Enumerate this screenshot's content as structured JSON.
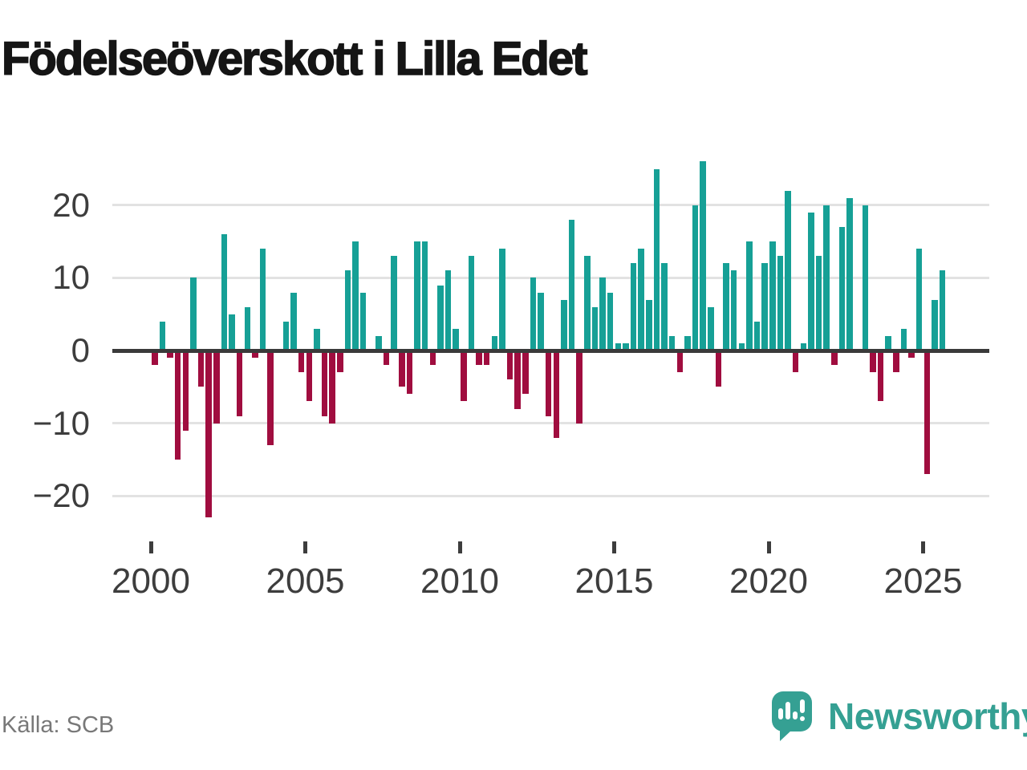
{
  "title": "Födelseöverskott i Lilla Edet",
  "source": "Källa: SCB",
  "branding": {
    "name": "Newsworthy",
    "logo_icon": "speech-bubble-bar-chart-icon",
    "color": "#35a093"
  },
  "chart_data": {
    "type": "bar",
    "title": "Födelseöverskott i Lilla Edet",
    "frequency": "quarterly",
    "xlabel": "",
    "ylabel": "",
    "ylim": [
      -25,
      28
    ],
    "grid": "horizontal",
    "legend": "none",
    "y_ticks": [
      {
        "value": 20,
        "label": "20"
      },
      {
        "value": 10,
        "label": "10"
      },
      {
        "value": 0,
        "label": "0"
      },
      {
        "value": -10,
        "label": "−10"
      },
      {
        "value": -20,
        "label": "−20"
      }
    ],
    "x_ticks": [
      {
        "year": 2000,
        "label": "2000"
      },
      {
        "year": 2005,
        "label": "2005"
      },
      {
        "year": 2010,
        "label": "2010"
      },
      {
        "year": 2015,
        "label": "2015"
      },
      {
        "year": 2020,
        "label": "2020"
      },
      {
        "year": 2025,
        "label": "2025"
      }
    ],
    "positive_color": "#16a096",
    "negative_color": "#a00d3f",
    "series": [
      {
        "year": 2000,
        "values": [
          -2,
          4,
          -1,
          -15
        ]
      },
      {
        "year": 2001,
        "values": [
          -11,
          10,
          -5,
          -23
        ]
      },
      {
        "year": 2002,
        "values": [
          -10,
          16,
          5,
          -9
        ]
      },
      {
        "year": 2003,
        "values": [
          6,
          -1,
          14,
          -13
        ]
      },
      {
        "year": 2004,
        "values": [
          0,
          4,
          8,
          -3
        ]
      },
      {
        "year": 2005,
        "values": [
          -7,
          3,
          -9,
          -10
        ]
      },
      {
        "year": 2006,
        "values": [
          -3,
          11,
          15,
          8
        ]
      },
      {
        "year": 2007,
        "values": [
          0,
          2,
          -2,
          13
        ]
      },
      {
        "year": 2008,
        "values": [
          -5,
          -6,
          15,
          15
        ]
      },
      {
        "year": 2009,
        "values": [
          -2,
          9,
          11,
          3
        ]
      },
      {
        "year": 2010,
        "values": [
          -7,
          13,
          -2,
          -2
        ]
      },
      {
        "year": 2011,
        "values": [
          2,
          14,
          -4,
          -8
        ]
      },
      {
        "year": 2012,
        "values": [
          -6,
          10,
          8,
          -9
        ]
      },
      {
        "year": 2013,
        "values": [
          -12,
          7,
          18,
          -10
        ]
      },
      {
        "year": 2014,
        "values": [
          13,
          6,
          10,
          8
        ]
      },
      {
        "year": 2015,
        "values": [
          1,
          1,
          12,
          14
        ]
      },
      {
        "year": 2016,
        "values": [
          7,
          25,
          12,
          2
        ]
      },
      {
        "year": 2017,
        "values": [
          -3,
          2,
          20,
          26
        ]
      },
      {
        "year": 2018,
        "values": [
          6,
          -5,
          12,
          11
        ]
      },
      {
        "year": 2019,
        "values": [
          1,
          15,
          4,
          12
        ]
      },
      {
        "year": 2020,
        "values": [
          15,
          13,
          22,
          -3
        ]
      },
      {
        "year": 2021,
        "values": [
          1,
          19,
          13,
          20
        ]
      },
      {
        "year": 2022,
        "values": [
          -2,
          17,
          21,
          0
        ]
      },
      {
        "year": 2023,
        "values": [
          20,
          -3,
          -7,
          2
        ]
      },
      {
        "year": 2024,
        "values": [
          -3,
          3,
          -1,
          14
        ]
      },
      {
        "year": 2025,
        "values": [
          -17,
          7,
          11
        ]
      }
    ]
  }
}
